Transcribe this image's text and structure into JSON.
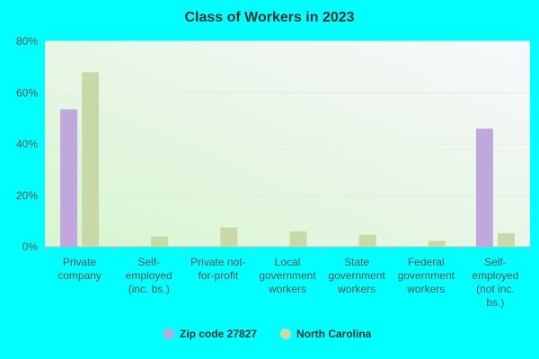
{
  "chart_data": {
    "type": "bar",
    "title": "Class of Workers in 2023",
    "categories": [
      "Private\ncompany",
      "Self-\nemployed\n(inc. bs.)",
      "Private not-\nfor-profit",
      "Local\ngovernment\nworkers",
      "State\ngovernment\nworkers",
      "Federal\ngovernment\nworkers",
      "Self-\nemployed\n(not inc.\nbs.)"
    ],
    "series": [
      {
        "name": "Zip code 27827",
        "color": "#c0a8dc",
        "values": [
          53.5,
          0,
          0,
          0,
          0,
          0,
          46
        ]
      },
      {
        "name": "North Carolina",
        "color": "#c8d9a8",
        "values": [
          68,
          4,
          7.5,
          6,
          4.7,
          2.3,
          5.3
        ]
      }
    ],
    "ylim": [
      0,
      80
    ],
    "yticks": [
      {
        "value": 0,
        "label": "0%"
      },
      {
        "value": 20,
        "label": "20%"
      },
      {
        "value": 40,
        "label": "40%"
      },
      {
        "value": 60,
        "label": "60%"
      },
      {
        "value": 80,
        "label": "80%"
      }
    ],
    "grid": true
  }
}
